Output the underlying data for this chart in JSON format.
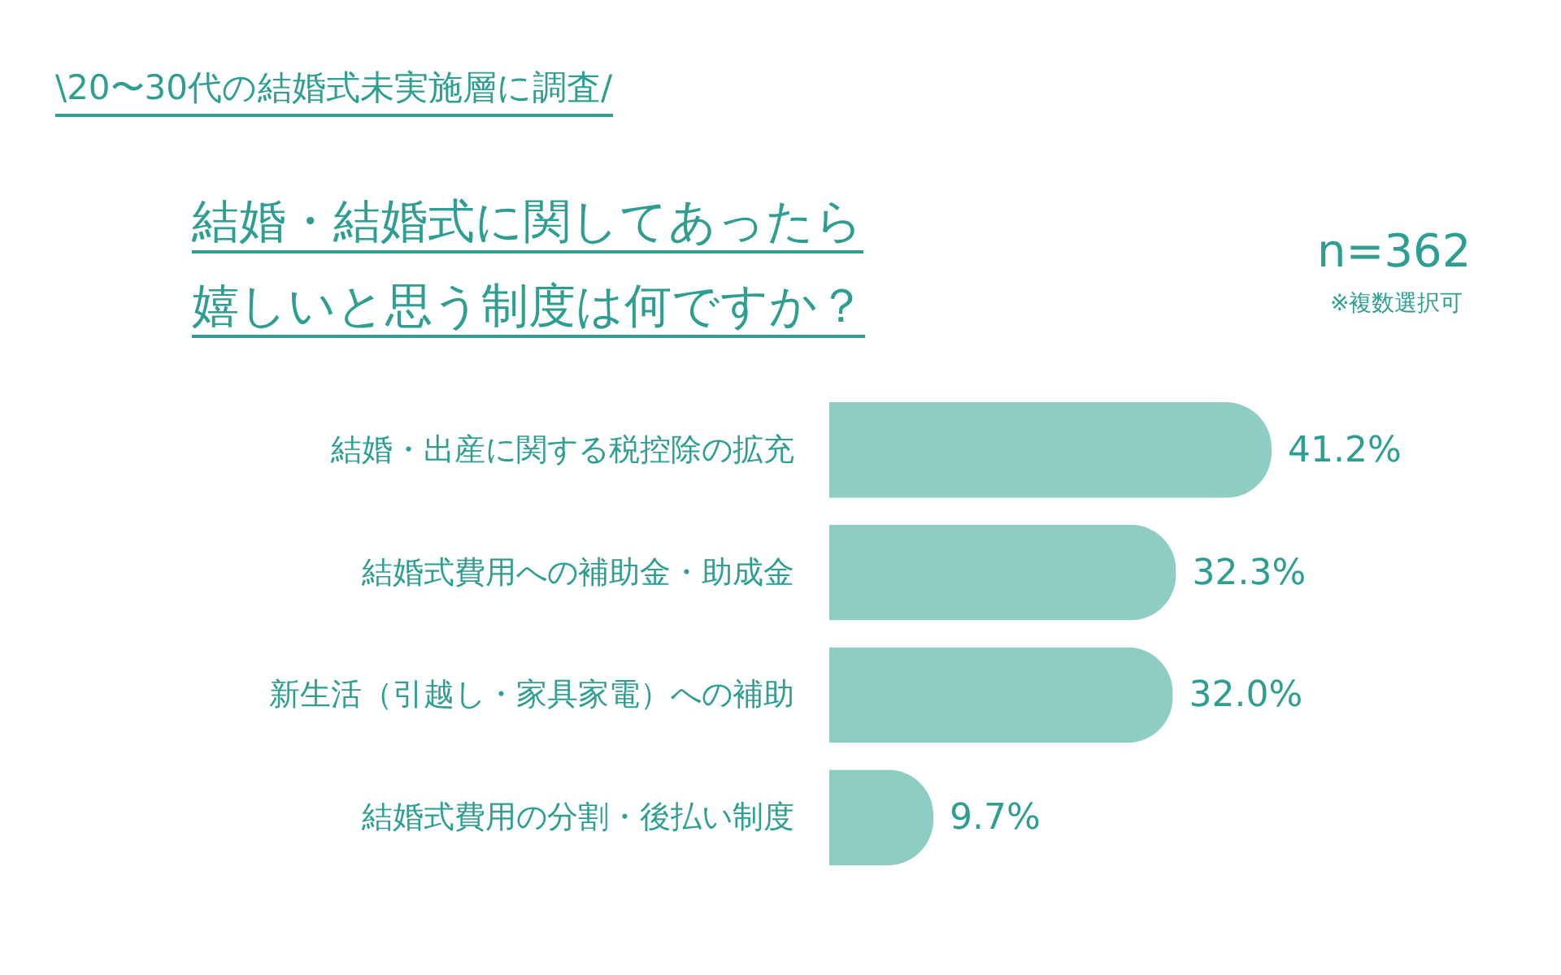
{
  "chart_data": {
    "type": "bar",
    "orientation": "horizontal",
    "subtitle": "\\20〜30代の結婚式未実施層に調査/",
    "title": "結婚・結婚式に関してあったら嬉しいと思う制度は何ですか？",
    "annotations": [
      "n=362",
      "※複数選択可"
    ],
    "categories": [
      "結婚・出産に関する税控除の拡充",
      "結婚式費用への補助金・助成金",
      "新生活（引越し・家具家電）への補助",
      "結婚式費用の分割・後払い制度"
    ],
    "values": [
      41.2,
      32.3,
      32.0,
      9.7
    ],
    "value_labels": [
      "41.2%",
      "32.3%",
      "32.0%",
      "9.7%"
    ],
    "color": "#8ecdc4"
  }
}
